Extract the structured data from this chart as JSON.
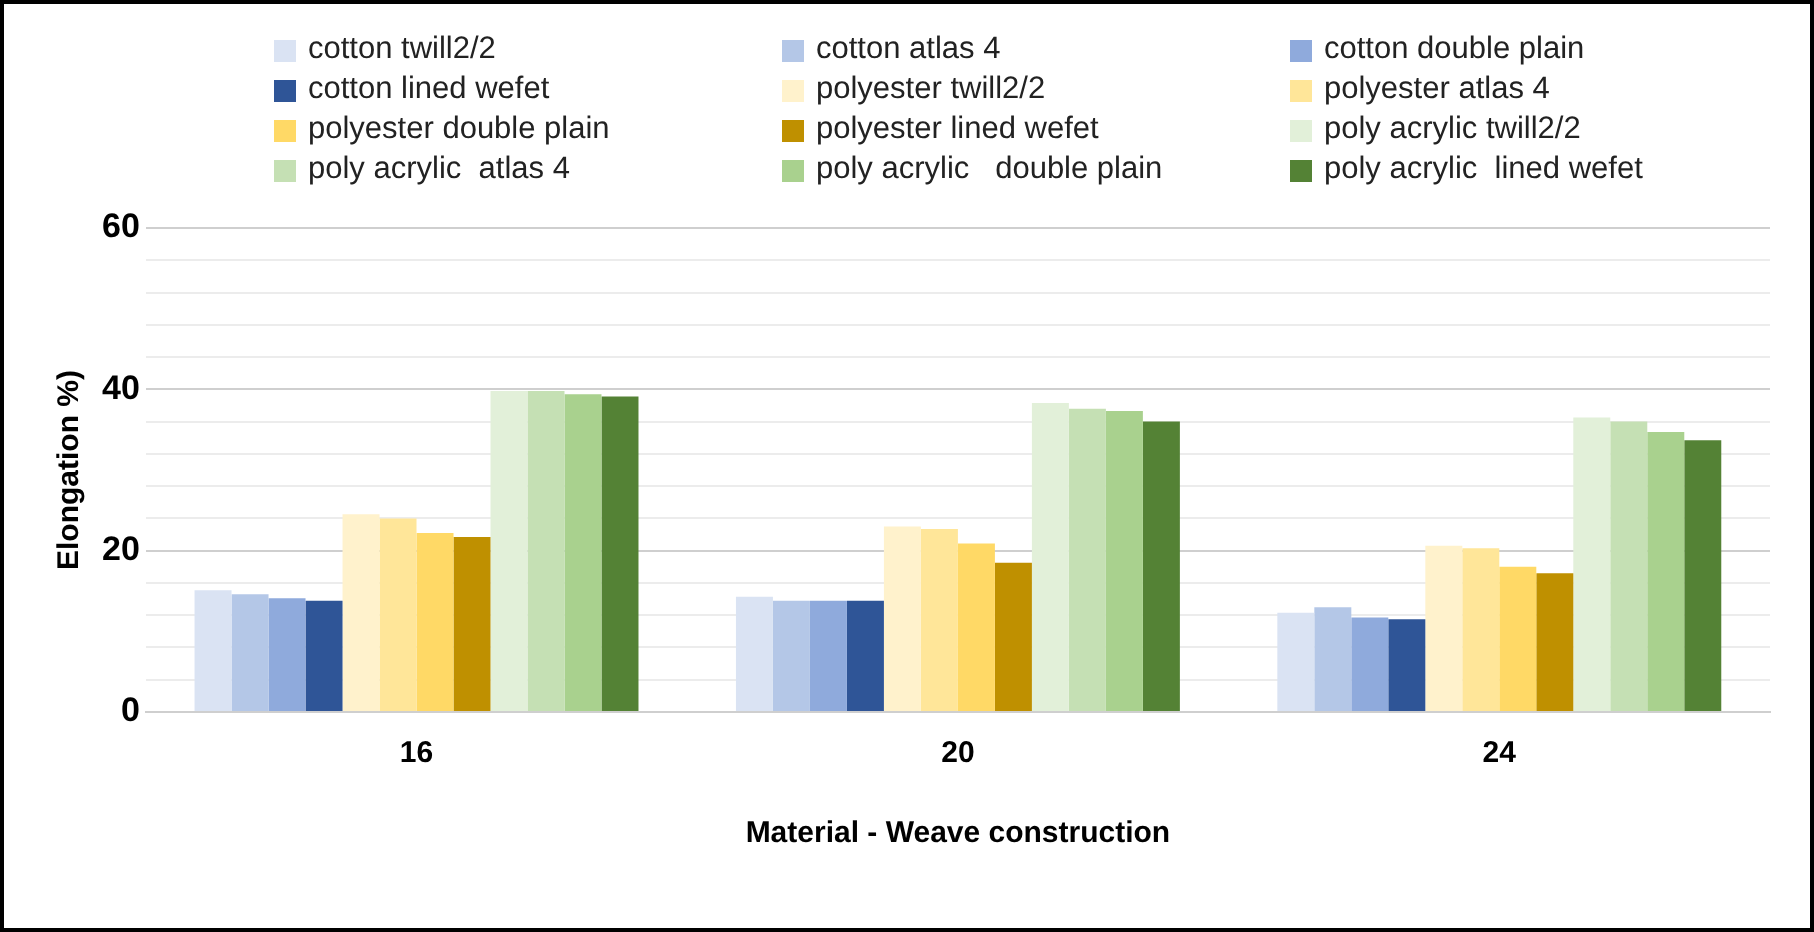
{
  "chart_data": {
    "type": "bar",
    "xlabel": "Material - Weave construction",
    "ylabel": "Elongation %)",
    "categories": [
      "16",
      "20",
      "24"
    ],
    "ylim": [
      0,
      60
    ],
    "yticks": [
      0,
      {
        "value": 4,
        "label": null
      },
      {
        "value": 8,
        "label": null
      },
      {
        "value": 12,
        "label": null
      },
      {
        "value": 16,
        "label": null
      },
      20,
      {
        "value": 24,
        "label": null
      },
      {
        "value": 28,
        "label": null
      },
      {
        "value": 32,
        "label": null
      },
      {
        "value": 36,
        "label": null
      },
      40,
      {
        "value": 44,
        "label": null
      },
      {
        "value": 48,
        "label": null
      },
      {
        "value": 52,
        "label": null
      },
      {
        "value": 56,
        "label": null
      },
      60
    ],
    "grid": "y",
    "legend": "top",
    "series": [
      {
        "name": "cotton twill2/2",
        "color": "#dae3f3",
        "values": [
          15.1,
          14.3,
          12.3
        ]
      },
      {
        "name": "cotton atlas 4",
        "color": "#b4c7e7",
        "values": [
          14.6,
          13.8,
          13.0
        ]
      },
      {
        "name": "cotton double plain",
        "color": "#8faadc",
        "values": [
          14.1,
          13.8,
          11.7
        ]
      },
      {
        "name": "cotton lined wefet",
        "color": "#2f5597",
        "values": [
          13.8,
          13.8,
          11.5
        ]
      },
      {
        "name": "polyester twill2/2",
        "color": "#fff2cc",
        "values": [
          24.5,
          23.0,
          20.6
        ]
      },
      {
        "name": "polyester atlas 4",
        "color": "#ffe699",
        "values": [
          24.0,
          22.7,
          20.3
        ]
      },
      {
        "name": "polyester double plain",
        "color": "#ffd966",
        "values": [
          22.2,
          20.9,
          18.0
        ]
      },
      {
        "name": "polyester lined wefet",
        "color": "#bf9000",
        "values": [
          21.7,
          18.5,
          17.2
        ]
      },
      {
        "name": "poly acrylic twill2/2",
        "color": "#e2f0d9",
        "values": [
          39.8,
          38.3,
          36.5
        ]
      },
      {
        "name": "poly acrylic  atlas 4",
        "color": "#c5e0b4",
        "values": [
          39.8,
          37.6,
          36.0
        ]
      },
      {
        "name": "poly acrylic   double plain",
        "color": "#a9d18e",
        "values": [
          39.4,
          37.3,
          34.7
        ]
      },
      {
        "name": "poly acrylic  lined wefet",
        "color": "#548235",
        "values": [
          39.1,
          36.0,
          33.7
        ]
      }
    ]
  }
}
